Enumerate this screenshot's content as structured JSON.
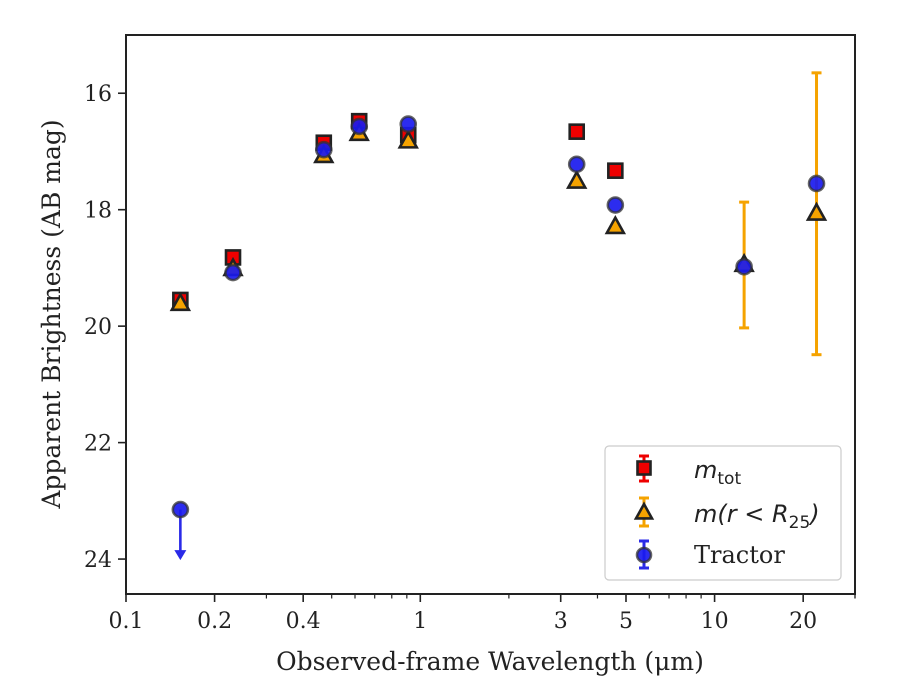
{
  "chart_data": {
    "type": "scatter",
    "xlabel": "Observed-frame Wavelength (μm)",
    "ylabel": "Apparent Brightness (AB mag)",
    "xscale": "log",
    "xlim": [
      0.1,
      30
    ],
    "ylim": [
      24.6,
      15.0
    ],
    "y_inverted": true,
    "xticks": [
      {
        "value": 0.1,
        "label": "0.1"
      },
      {
        "value": 0.2,
        "label": "0.2"
      },
      {
        "value": 0.4,
        "label": "0.4"
      },
      {
        "value": 1,
        "label": "1"
      },
      {
        "value": 3,
        "label": "3"
      },
      {
        "value": 5,
        "label": "5"
      },
      {
        "value": 10,
        "label": "10"
      },
      {
        "value": 20,
        "label": "20"
      }
    ],
    "yticks": [
      {
        "value": 16,
        "label": "16"
      },
      {
        "value": 18,
        "label": "18"
      },
      {
        "value": 20,
        "label": "20"
      },
      {
        "value": 22,
        "label": "22"
      },
      {
        "value": 24,
        "label": "24"
      }
    ],
    "grid": false,
    "legend_position": "lower-right",
    "series": [
      {
        "name": "m_tot",
        "legend_main": "m",
        "legend_sub": "tot",
        "marker": "square",
        "color": "#ee0000",
        "edge_color": "#222222",
        "points": [
          {
            "x": 0.153,
            "y": 19.55
          },
          {
            "x": 0.231,
            "y": 18.82
          },
          {
            "x": 0.47,
            "y": 16.85
          },
          {
            "x": 0.62,
            "y": 16.48
          },
          {
            "x": 0.91,
            "y": 16.72
          },
          {
            "x": 3.4,
            "y": 16.66
          },
          {
            "x": 4.6,
            "y": 17.33
          }
        ]
      },
      {
        "name": "m(r < R_25)",
        "legend_main": "m(r < R",
        "legend_sub": "25",
        "legend_tail": ")",
        "marker": "triangle",
        "color": "#f5a300",
        "edge_color": "#222222",
        "points": [
          {
            "x": 0.153,
            "y": 19.62,
            "yerr": 0.04
          },
          {
            "x": 0.231,
            "y": 19.02,
            "yerr": 0.04
          },
          {
            "x": 0.47,
            "y": 17.08,
            "yerr": 0.04
          },
          {
            "x": 0.62,
            "y": 16.7,
            "yerr": 0.04
          },
          {
            "x": 0.91,
            "y": 16.83,
            "yerr": 0.04
          },
          {
            "x": 3.4,
            "y": 17.52,
            "yerr": 0.04
          },
          {
            "x": 4.6,
            "y": 18.3,
            "yerr": 0.04
          },
          {
            "x": 12.6,
            "y": 18.95,
            "yerr": 1.08
          },
          {
            "x": 22.2,
            "y": 18.07,
            "yerr": 2.42
          }
        ]
      },
      {
        "name": "Tractor",
        "legend_main": "Tractor",
        "marker": "circle",
        "color": "#1a1aee",
        "edge_color": "#333333",
        "points": [
          {
            "x": 0.153,
            "y": 23.15,
            "upper_limit": true
          },
          {
            "x": 0.231,
            "y": 19.08
          },
          {
            "x": 0.47,
            "y": 16.97
          },
          {
            "x": 0.62,
            "y": 16.57
          },
          {
            "x": 0.91,
            "y": 16.53
          },
          {
            "x": 3.4,
            "y": 17.22
          },
          {
            "x": 4.6,
            "y": 17.92
          },
          {
            "x": 12.6,
            "y": 18.98
          },
          {
            "x": 22.2,
            "y": 17.55
          }
        ]
      }
    ]
  }
}
